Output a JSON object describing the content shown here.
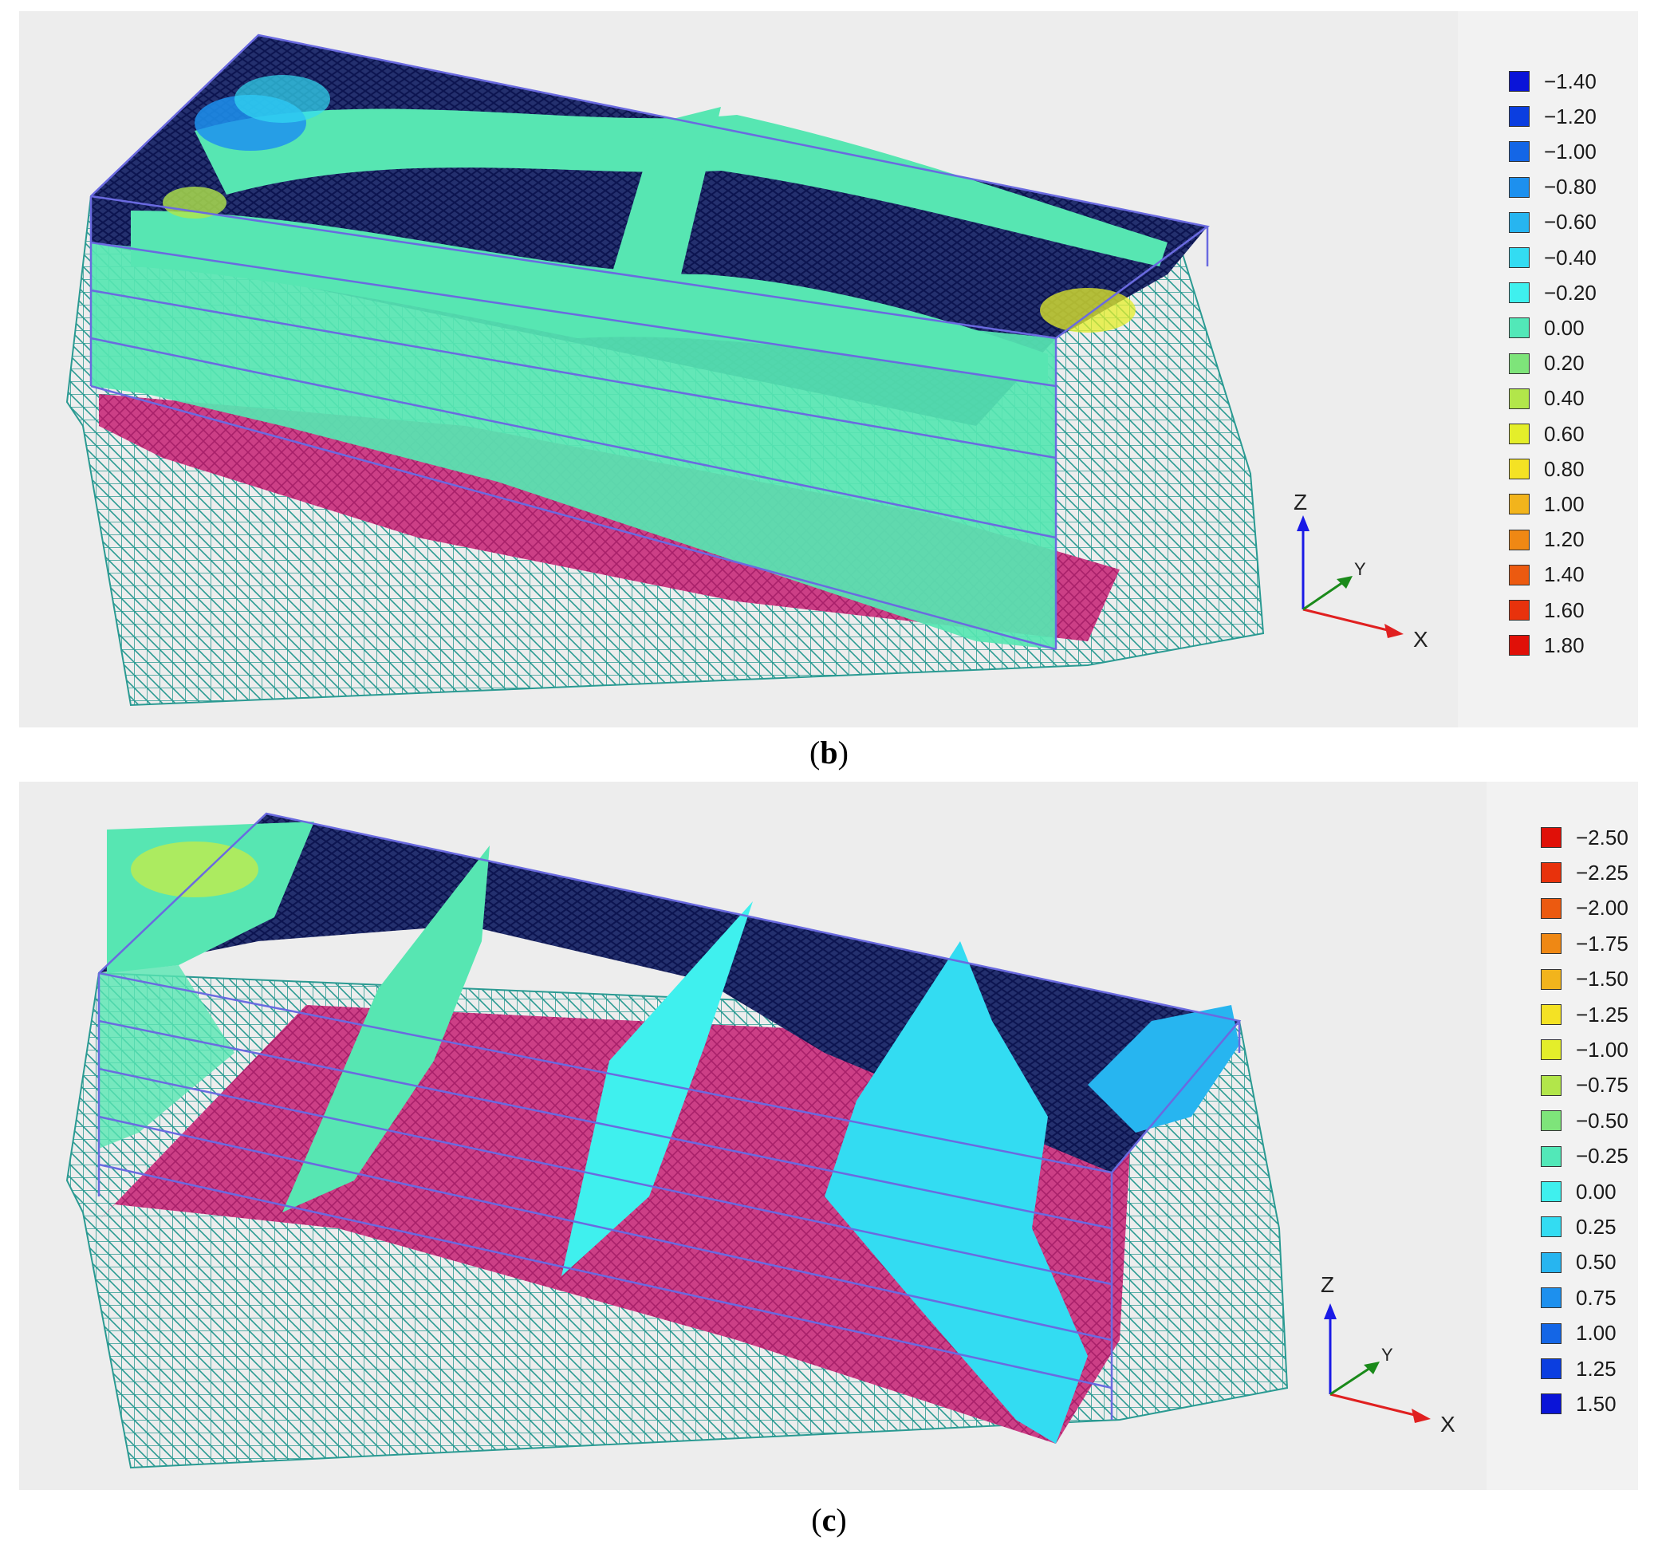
{
  "panels": [
    {
      "caption_open": "(",
      "caption_letter": "b",
      "caption_close": ")",
      "legend": [
        {
          "label": "−1.40",
          "color": "#0a14d8"
        },
        {
          "label": "−1.20",
          "color": "#0b3ee0"
        },
        {
          "label": "−1.00",
          "color": "#1466e6"
        },
        {
          "label": "−0.80",
          "color": "#1d90ee"
        },
        {
          "label": "−0.60",
          "color": "#27b5f0"
        },
        {
          "label": "−0.40",
          "color": "#33dcf2"
        },
        {
          "label": "−0.20",
          "color": "#3ff0ee"
        },
        {
          "label": "0.00",
          "color": "#52e8b8"
        },
        {
          "label": "0.20",
          "color": "#7ee47a"
        },
        {
          "label": "0.40",
          "color": "#b2e64a"
        },
        {
          "label": "0.60",
          "color": "#e4ee2a"
        },
        {
          "label": "0.80",
          "color": "#f4e224"
        },
        {
          "label": "1.00",
          "color": "#f2b41c"
        },
        {
          "label": "1.20",
          "color": "#ef8814"
        },
        {
          "label": "1.40",
          "color": "#ec5a10"
        },
        {
          "label": "1.60",
          "color": "#e8320c"
        },
        {
          "label": "1.80",
          "color": "#e01008"
        }
      ],
      "axes": {
        "z": "Z",
        "y": "Y",
        "x": "X"
      }
    },
    {
      "caption_open": "(",
      "caption_letter": "c",
      "caption_close": ")",
      "legend": [
        {
          "label": "−2.50",
          "color": "#e01008"
        },
        {
          "label": "−2.25",
          "color": "#e8320c"
        },
        {
          "label": "−2.00",
          "color": "#ec5a10"
        },
        {
          "label": "−1.75",
          "color": "#ef8814"
        },
        {
          "label": "−1.50",
          "color": "#f2b41c"
        },
        {
          "label": "−1.25",
          "color": "#f4e224"
        },
        {
          "label": "−1.00",
          "color": "#e4ee2a"
        },
        {
          "label": "−0.75",
          "color": "#b2e64a"
        },
        {
          "label": "−0.50",
          "color": "#7ee47a"
        },
        {
          "label": "−0.25",
          "color": "#52e8b8"
        },
        {
          "label": "0.00",
          "color": "#3ff0ee"
        },
        {
          "label": "0.25",
          "color": "#33dcf2"
        },
        {
          "label": "0.50",
          "color": "#27b5f0"
        },
        {
          "label": "0.75",
          "color": "#1d90ee"
        },
        {
          "label": "1.00",
          "color": "#1466e6"
        },
        {
          "label": "1.25",
          "color": "#0b3ee0"
        },
        {
          "label": "1.50",
          "color": "#0a14d8"
        }
      ],
      "axes": {
        "z": "Z",
        "y": "Y",
        "x": "X"
      }
    }
  ]
}
